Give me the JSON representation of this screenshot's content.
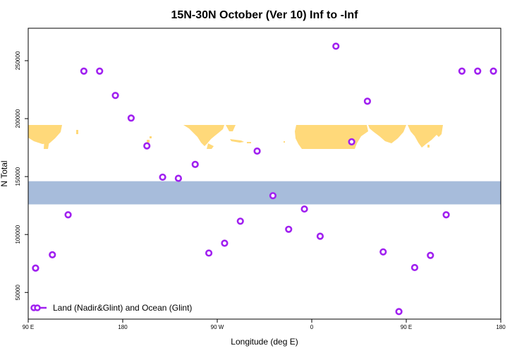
{
  "chart_data": {
    "type": "scatter",
    "title": "15N-30N October (Ver 10)   Inf to -Inf",
    "xlabel": "Longitude (deg E)",
    "ylabel": "N Total",
    "x_tick_labels": [
      "90 E",
      "180",
      "90 W",
      "0",
      "90 E",
      "180"
    ],
    "x_tick_values": [
      90,
      180,
      270,
      360,
      450,
      540
    ],
    "xlim": [
      90,
      540
    ],
    "y_tick_labels": [
      "50000",
      "100000",
      "150000",
      "200000",
      "250000"
    ],
    "y_tick_values": [
      50000,
      100000,
      150000,
      200000,
      250000
    ],
    "ylim": [
      27000,
      278000
    ],
    "legend": {
      "position": "bottom-left",
      "label": "Land (Nadir&Glint) and Ocean (Glint)"
    },
    "background_map": {
      "land_color": "#FFD97A",
      "ocean_color": "#A7BCDB",
      "lat_band": "15N-30N",
      "y_range": [
        126000,
        146000
      ]
    },
    "series": [
      {
        "name": "Land (Nadir&Glint) and Ocean (Glint)",
        "color": "#A020F0",
        "x": [
          97,
          113,
          128,
          143,
          158,
          173,
          188,
          203,
          218,
          233,
          249,
          262,
          277,
          292,
          308,
          323,
          338,
          353,
          368,
          383,
          398,
          413,
          428,
          443,
          458,
          473,
          488,
          503,
          518,
          533
        ],
        "y": [
          71000,
          82500,
          117000,
          241000,
          241000,
          220000,
          200500,
          176500,
          149500,
          148500,
          160500,
          84000,
          92500,
          111500,
          172000,
          133500,
          104500,
          122000,
          98500,
          262500,
          180000,
          215000,
          85000,
          33500,
          71500,
          82000,
          117000,
          241000,
          241000,
          241000
        ]
      }
    ]
  }
}
